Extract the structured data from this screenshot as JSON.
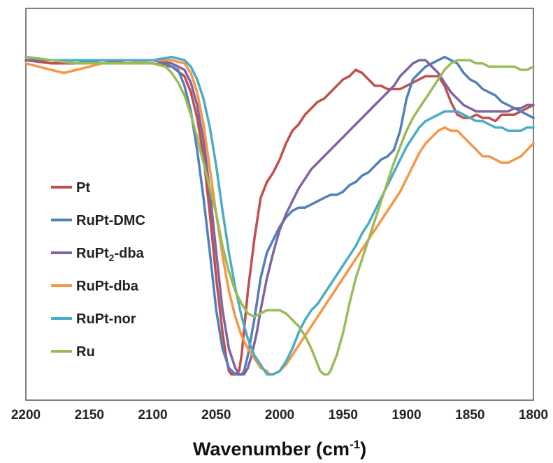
{
  "chart_data": {
    "type": "line",
    "title": "",
    "xlabel": "Wavenumber (cm",
    "xlabel_superscript": "-1",
    "xlabel_suffix": ")",
    "ylabel": "",
    "x_reversed": true,
    "xlim": [
      2200,
      1800
    ],
    "ylim": [
      0,
      1
    ],
    "x_ticks": [
      2200,
      2150,
      2100,
      2050,
      2000,
      1950,
      1900,
      1850,
      1800
    ],
    "grid": false,
    "legend_position": "left",
    "series": [
      {
        "name": "Pt",
        "subscript": "",
        "name_suffix": "",
        "color": "#c0504d",
        "x": [
          2200,
          2180,
          2160,
          2140,
          2120,
          2100,
          2085,
          2075,
          2070,
          2065,
          2060,
          2055,
          2050,
          2045,
          2042,
          2040,
          2038,
          2035,
          2032,
          2030,
          2028,
          2025,
          2020,
          2015,
          2010,
          2005,
          2000,
          1995,
          1990,
          1985,
          1980,
          1975,
          1970,
          1965,
          1960,
          1955,
          1950,
          1945,
          1940,
          1935,
          1930,
          1925,
          1920,
          1915,
          1910,
          1905,
          1900,
          1895,
          1890,
          1885,
          1880,
          1875,
          1870,
          1865,
          1860,
          1855,
          1850,
          1845,
          1840,
          1835,
          1830,
          1825,
          1820,
          1815,
          1810,
          1805,
          1800
        ],
        "y": [
          0.98,
          0.97,
          0.97,
          0.98,
          0.97,
          0.97,
          0.96,
          0.93,
          0.88,
          0.8,
          0.68,
          0.5,
          0.3,
          0.13,
          0.05,
          0.01,
          0.0,
          0.0,
          0.01,
          0.06,
          0.14,
          0.26,
          0.42,
          0.55,
          0.6,
          0.63,
          0.67,
          0.72,
          0.76,
          0.78,
          0.81,
          0.83,
          0.85,
          0.86,
          0.88,
          0.9,
          0.92,
          0.93,
          0.95,
          0.94,
          0.92,
          0.9,
          0.9,
          0.89,
          0.89,
          0.89,
          0.9,
          0.91,
          0.92,
          0.93,
          0.93,
          0.93,
          0.9,
          0.85,
          0.81,
          0.8,
          0.8,
          0.81,
          0.8,
          0.8,
          0.79,
          0.81,
          0.81,
          0.81,
          0.82,
          0.83,
          0.84
        ]
      },
      {
        "name": "RuPt-DMC",
        "subscript": "",
        "name_suffix": "",
        "color": "#4f81bd",
        "x": [
          2200,
          2180,
          2160,
          2140,
          2120,
          2100,
          2090,
          2080,
          2075,
          2070,
          2065,
          2060,
          2055,
          2050,
          2045,
          2040,
          2035,
          2032,
          2030,
          2028,
          2025,
          2020,
          2015,
          2010,
          2005,
          2000,
          1995,
          1990,
          1985,
          1980,
          1975,
          1970,
          1965,
          1960,
          1955,
          1950,
          1945,
          1940,
          1935,
          1930,
          1925,
          1920,
          1915,
          1910,
          1905,
          1900,
          1895,
          1890,
          1885,
          1880,
          1875,
          1870,
          1865,
          1860,
          1855,
          1850,
          1845,
          1840,
          1835,
          1830,
          1825,
          1820,
          1815,
          1810,
          1805,
          1800
        ],
        "y": [
          0.99,
          0.98,
          0.97,
          0.98,
          0.98,
          0.98,
          0.97,
          0.95,
          0.9,
          0.82,
          0.7,
          0.55,
          0.38,
          0.2,
          0.08,
          0.02,
          0.0,
          0.0,
          0.0,
          0.01,
          0.06,
          0.17,
          0.3,
          0.38,
          0.42,
          0.46,
          0.49,
          0.51,
          0.52,
          0.52,
          0.53,
          0.54,
          0.55,
          0.56,
          0.56,
          0.57,
          0.59,
          0.6,
          0.62,
          0.63,
          0.65,
          0.67,
          0.68,
          0.7,
          0.76,
          0.86,
          0.92,
          0.94,
          0.96,
          0.97,
          0.98,
          0.99,
          0.98,
          0.97,
          0.94,
          0.92,
          0.91,
          0.89,
          0.88,
          0.87,
          0.85,
          0.84,
          0.83,
          0.82,
          0.81,
          0.8
        ]
      },
      {
        "name": "RuPt",
        "subscript": "2",
        "name_suffix": "-dba",
        "color": "#8064a2",
        "x": [
          2200,
          2180,
          2160,
          2140,
          2120,
          2100,
          2085,
          2075,
          2070,
          2065,
          2060,
          2055,
          2050,
          2045,
          2040,
          2035,
          2032,
          2030,
          2028,
          2025,
          2022,
          2018,
          2015,
          2010,
          2005,
          2000,
          1995,
          1990,
          1985,
          1980,
          1975,
          1970,
          1965,
          1960,
          1955,
          1950,
          1945,
          1940,
          1935,
          1930,
          1925,
          1920,
          1915,
          1910,
          1905,
          1900,
          1895,
          1890,
          1885,
          1880,
          1875,
          1870,
          1865,
          1860,
          1855,
          1850,
          1845,
          1840,
          1835,
          1830,
          1825,
          1820,
          1815,
          1810,
          1805,
          1800
        ],
        "y": [
          0.98,
          0.98,
          0.98,
          0.98,
          0.98,
          0.98,
          0.97,
          0.95,
          0.91,
          0.84,
          0.73,
          0.57,
          0.38,
          0.2,
          0.08,
          0.02,
          0.0,
          0.0,
          0.0,
          0.02,
          0.06,
          0.13,
          0.2,
          0.3,
          0.38,
          0.45,
          0.5,
          0.54,
          0.58,
          0.61,
          0.64,
          0.66,
          0.68,
          0.7,
          0.72,
          0.74,
          0.76,
          0.78,
          0.8,
          0.82,
          0.84,
          0.86,
          0.88,
          0.9,
          0.93,
          0.95,
          0.97,
          0.98,
          0.98,
          0.96,
          0.94,
          0.91,
          0.88,
          0.86,
          0.84,
          0.83,
          0.82,
          0.82,
          0.82,
          0.82,
          0.82,
          0.82,
          0.83,
          0.83,
          0.84,
          0.84
        ]
      },
      {
        "name": "RuPt-dba",
        "subscript": "",
        "name_suffix": "",
        "color": "#f79646",
        "x": [
          2200,
          2190,
          2180,
          2170,
          2160,
          2150,
          2140,
          2120,
          2100,
          2085,
          2075,
          2070,
          2065,
          2060,
          2055,
          2050,
          2045,
          2040,
          2035,
          2030,
          2025,
          2020,
          2015,
          2010,
          2008,
          2005,
          2000,
          1995,
          1990,
          1985,
          1980,
          1975,
          1970,
          1965,
          1960,
          1955,
          1950,
          1945,
          1940,
          1935,
          1930,
          1925,
          1920,
          1915,
          1910,
          1905,
          1900,
          1895,
          1890,
          1885,
          1880,
          1875,
          1870,
          1865,
          1860,
          1855,
          1850,
          1845,
          1840,
          1835,
          1830,
          1825,
          1820,
          1815,
          1810,
          1805,
          1800
        ],
        "y": [
          0.97,
          0.96,
          0.95,
          0.94,
          0.95,
          0.96,
          0.97,
          0.97,
          0.98,
          0.98,
          0.97,
          0.94,
          0.88,
          0.78,
          0.64,
          0.5,
          0.37,
          0.26,
          0.18,
          0.12,
          0.08,
          0.05,
          0.02,
          0.01,
          0.0,
          0.0,
          0.01,
          0.03,
          0.06,
          0.09,
          0.12,
          0.15,
          0.18,
          0.21,
          0.24,
          0.27,
          0.3,
          0.33,
          0.36,
          0.39,
          0.42,
          0.45,
          0.48,
          0.51,
          0.54,
          0.57,
          0.61,
          0.65,
          0.69,
          0.72,
          0.74,
          0.76,
          0.77,
          0.76,
          0.76,
          0.74,
          0.72,
          0.7,
          0.68,
          0.68,
          0.67,
          0.66,
          0.66,
          0.67,
          0.68,
          0.7,
          0.72
        ]
      },
      {
        "name": "RuPt-nor",
        "subscript": "",
        "name_suffix": "",
        "color": "#4bacc6",
        "x": [
          2200,
          2180,
          2160,
          2140,
          2120,
          2100,
          2085,
          2075,
          2070,
          2065,
          2060,
          2055,
          2050,
          2045,
          2040,
          2035,
          2030,
          2025,
          2020,
          2015,
          2010,
          2005,
          2000,
          1995,
          1990,
          1985,
          1980,
          1975,
          1970,
          1965,
          1960,
          1955,
          1950,
          1945,
          1940,
          1935,
          1930,
          1925,
          1920,
          1915,
          1910,
          1905,
          1900,
          1895,
          1890,
          1885,
          1880,
          1875,
          1870,
          1865,
          1860,
          1855,
          1850,
          1845,
          1840,
          1835,
          1830,
          1825,
          1820,
          1815,
          1810,
          1805,
          1800
        ],
        "y": [
          0.99,
          0.98,
          0.98,
          0.98,
          0.98,
          0.98,
          0.99,
          0.98,
          0.96,
          0.92,
          0.86,
          0.77,
          0.65,
          0.51,
          0.38,
          0.27,
          0.18,
          0.11,
          0.06,
          0.03,
          0.0,
          0.0,
          0.01,
          0.04,
          0.08,
          0.13,
          0.17,
          0.2,
          0.22,
          0.25,
          0.28,
          0.31,
          0.34,
          0.37,
          0.4,
          0.44,
          0.47,
          0.51,
          0.55,
          0.59,
          0.63,
          0.67,
          0.71,
          0.74,
          0.77,
          0.79,
          0.8,
          0.81,
          0.82,
          0.82,
          0.82,
          0.81,
          0.8,
          0.79,
          0.79,
          0.78,
          0.77,
          0.77,
          0.76,
          0.76,
          0.76,
          0.77,
          0.77
        ]
      },
      {
        "name": "Ru",
        "subscript": "",
        "name_suffix": "",
        "color": "#9bbb59",
        "x": [
          2200,
          2180,
          2160,
          2140,
          2120,
          2100,
          2090,
          2085,
          2080,
          2075,
          2070,
          2065,
          2060,
          2055,
          2050,
          2045,
          2040,
          2035,
          2030,
          2025,
          2020,
          2015,
          2010,
          2005,
          2000,
          1995,
          1990,
          1985,
          1980,
          1975,
          1970,
          1968,
          1965,
          1962,
          1960,
          1955,
          1950,
          1945,
          1940,
          1935,
          1930,
          1925,
          1920,
          1915,
          1910,
          1905,
          1900,
          1895,
          1890,
          1885,
          1880,
          1875,
          1870,
          1865,
          1860,
          1855,
          1850,
          1845,
          1840,
          1835,
          1830,
          1825,
          1820,
          1815,
          1810,
          1805,
          1800
        ],
        "y": [
          0.99,
          0.98,
          0.97,
          0.97,
          0.97,
          0.97,
          0.96,
          0.94,
          0.91,
          0.87,
          0.81,
          0.74,
          0.66,
          0.58,
          0.5,
          0.4,
          0.32,
          0.26,
          0.22,
          0.19,
          0.18,
          0.19,
          0.2,
          0.2,
          0.2,
          0.19,
          0.17,
          0.15,
          0.12,
          0.08,
          0.03,
          0.01,
          0.0,
          0.0,
          0.01,
          0.06,
          0.13,
          0.22,
          0.3,
          0.36,
          0.42,
          0.48,
          0.54,
          0.6,
          0.66,
          0.71,
          0.76,
          0.8,
          0.83,
          0.86,
          0.89,
          0.92,
          0.95,
          0.97,
          0.98,
          0.98,
          0.98,
          0.97,
          0.97,
          0.96,
          0.96,
          0.96,
          0.96,
          0.96,
          0.95,
          0.95,
          0.96
        ]
      }
    ]
  }
}
